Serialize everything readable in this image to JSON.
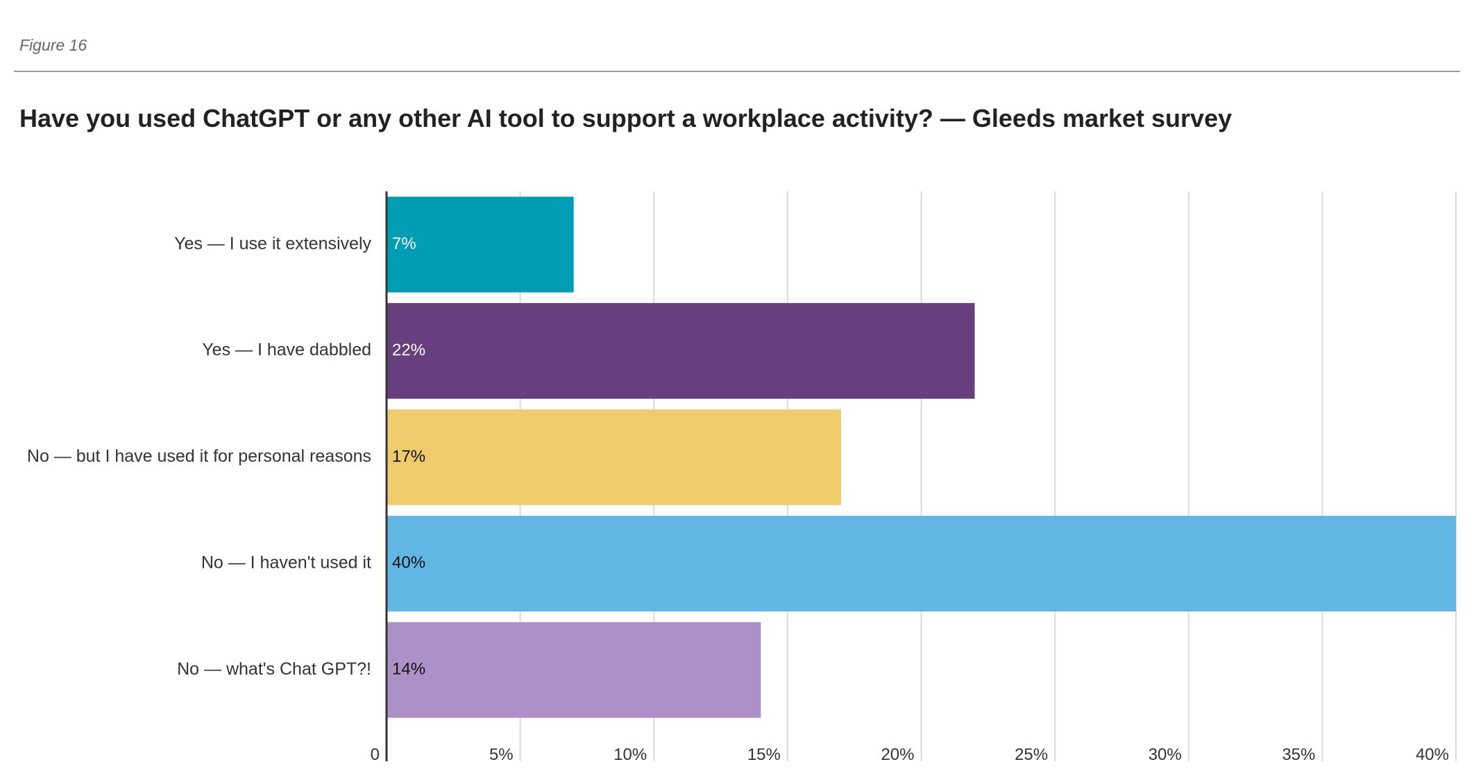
{
  "figure_label": "Figure 16",
  "chart_data": {
    "type": "bar",
    "orientation": "horizontal",
    "title": "Have you used ChatGPT or any other AI tool to support a workplace activity? — Gleeds market survey",
    "categories": [
      "Yes — I use it extensively",
      "Yes — I have dabbled",
      "No — but I have used it for personal reasons",
      "No — I haven't used it",
      "No — what's Chat GPT?!"
    ],
    "values": [
      7,
      22,
      17,
      40,
      14
    ],
    "data_labels": [
      "7%",
      "22%",
      "17%",
      "40%",
      "14%"
    ],
    "colors": [
      "#009db5",
      "#673f7e",
      "#efcb6c",
      "#61b6e4",
      "#ab91c7"
    ],
    "label_colors": [
      "#ffffff",
      "#ffffff",
      "#111111",
      "#111111",
      "#111111"
    ],
    "x_ticks": [
      0,
      5,
      10,
      15,
      20,
      25,
      30,
      35,
      40
    ],
    "x_tick_labels": [
      "0",
      "5%",
      "10%",
      "15%",
      "20%",
      "25%",
      "30%",
      "35%",
      "40%"
    ],
    "xlim": [
      0,
      40
    ],
    "xlabel": "",
    "ylabel": "",
    "grid": true,
    "legend": "none"
  }
}
